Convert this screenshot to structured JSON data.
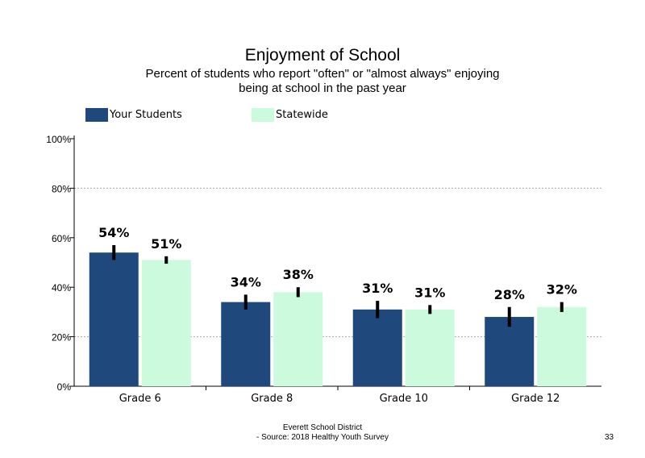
{
  "title": "Enjoyment  of School",
  "subtitle_line1": "Percent of students  who report \"often\" or \"almost  always\" enjoying",
  "subtitle_line2": "being at school in the past year",
  "footer_line1": "Everett School District",
  "footer_line2": "- Source: 2018 Healthy  Youth Survey",
  "page_number": "33",
  "colors": {
    "your_students": "#1f497d",
    "statewide": "#ccfadc",
    "grid": "#a6a6a6",
    "error_bar": "#000000"
  },
  "chart_data": {
    "type": "bar",
    "title": "Enjoyment  of School",
    "categories": [
      "Grade 6",
      "Grade 8",
      "Grade 10",
      "Grade 12"
    ],
    "series": [
      {
        "name": "Your Students",
        "values": [
          54,
          34,
          31,
          28
        ],
        "labels": [
          "54%",
          "34%",
          "31%",
          "28%"
        ],
        "error": [
          3,
          3,
          3.5,
          4
        ]
      },
      {
        "name": "Statewide",
        "values": [
          51,
          38,
          31,
          32
        ],
        "labels": [
          "51%",
          "38%",
          "31%",
          "32%"
        ],
        "error": [
          1.5,
          2,
          1.8,
          2
        ]
      }
    ],
    "yticks": [
      0,
      20,
      40,
      60,
      80,
      100
    ],
    "ytick_labels": [
      "0%",
      "20%",
      "40%",
      "60%",
      "80%",
      "100%"
    ],
    "ylim": [
      0,
      100
    ],
    "gridlines": [
      20,
      80
    ],
    "legend_position": "top"
  }
}
